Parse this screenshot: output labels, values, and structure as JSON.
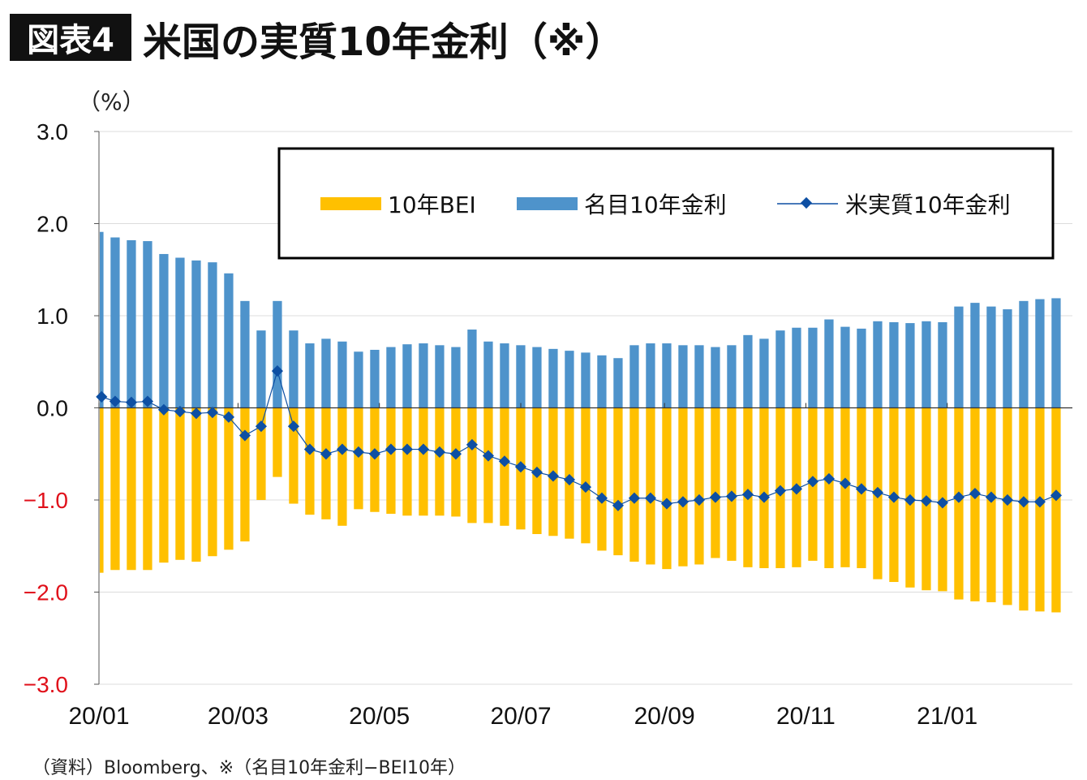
{
  "header": {
    "badge": "図表4",
    "title": "米国の実質10年金利（※）"
  },
  "footer": {
    "source": "（資料）Bloomberg、※（名目10年金利−BEI10年）"
  },
  "chart_data": {
    "type": "bar+line",
    "ylabel": "（%）",
    "ylim": [
      -3.0,
      3.0
    ],
    "yticks": [
      {
        "value": 3.0,
        "label": "3.0",
        "color": "#111111"
      },
      {
        "value": 2.0,
        "label": "2.0",
        "color": "#111111"
      },
      {
        "value": 1.0,
        "label": "1.0",
        "color": "#111111"
      },
      {
        "value": 0.0,
        "label": "0.0",
        "color": "#111111"
      },
      {
        "value": -1.0,
        "label": "−1.0",
        "color": "#E0101A"
      },
      {
        "value": -2.0,
        "label": "−2.0",
        "color": "#E0101A"
      },
      {
        "value": -3.0,
        "label": "−3.0",
        "color": "#E0101A"
      }
    ],
    "xticks": [
      {
        "date": "2020-01-01",
        "label": "20/01"
      },
      {
        "date": "2020-03-01",
        "label": "20/03"
      },
      {
        "date": "2020-05-01",
        "label": "20/05"
      },
      {
        "date": "2020-07-01",
        "label": "20/07"
      },
      {
        "date": "2020-09-01",
        "label": "20/09"
      },
      {
        "date": "2020-11-01",
        "label": "20/11"
      },
      {
        "date": "2021-01-01",
        "label": "21/01"
      }
    ],
    "xlim": [
      "2020-01-01",
      "2021-02-24"
    ],
    "grid": "horizontal",
    "legend": {
      "placement": "top",
      "entries": [
        "10年BEI",
        "名目10年金利",
        "米実質10年金利"
      ]
    },
    "colors": {
      "bei": "#FFC000",
      "nominal": "#4E93CB",
      "real": "#0D4FA3"
    },
    "stacking_note_shown": false,
    "week_ending": [
      "2020-01-03",
      "2020-01-10",
      "2020-01-17",
      "2020-01-24",
      "2020-01-31",
      "2020-02-07",
      "2020-02-14",
      "2020-02-21",
      "2020-02-28",
      "2020-03-06",
      "2020-03-13",
      "2020-03-20",
      "2020-03-27",
      "2020-04-03",
      "2020-04-10",
      "2020-04-17",
      "2020-04-24",
      "2020-05-01",
      "2020-05-08",
      "2020-05-15",
      "2020-05-22",
      "2020-05-29",
      "2020-06-05",
      "2020-06-12",
      "2020-06-19",
      "2020-06-26",
      "2020-07-03",
      "2020-07-10",
      "2020-07-17",
      "2020-07-24",
      "2020-07-31",
      "2020-08-07",
      "2020-08-14",
      "2020-08-21",
      "2020-08-28",
      "2020-09-04",
      "2020-09-11",
      "2020-09-18",
      "2020-09-25",
      "2020-10-02",
      "2020-10-09",
      "2020-10-16",
      "2020-10-23",
      "2020-10-30",
      "2020-11-06",
      "2020-11-13",
      "2020-11-20",
      "2020-11-27",
      "2020-12-04",
      "2020-12-11",
      "2020-12-18",
      "2020-12-25",
      "2021-01-01",
      "2021-01-08",
      "2021-01-15",
      "2021-01-22",
      "2021-01-29",
      "2021-02-05",
      "2021-02-12",
      "2021-02-19"
    ],
    "series": [
      {
        "name": "名目10年金利",
        "kind": "bar",
        "values": [
          1.91,
          1.85,
          1.82,
          1.81,
          1.67,
          1.63,
          1.6,
          1.58,
          1.46,
          1.16,
          0.84,
          1.16,
          0.84,
          0.7,
          0.75,
          0.72,
          0.61,
          0.63,
          0.66,
          0.69,
          0.7,
          0.68,
          0.66,
          0.85,
          0.72,
          0.7,
          0.68,
          0.66,
          0.64,
          0.62,
          0.6,
          0.57,
          0.54,
          0.68,
          0.7,
          0.7,
          0.68,
          0.68,
          0.66,
          0.68,
          0.79,
          0.75,
          0.84,
          0.87,
          0.87,
          0.96,
          0.88,
          0.86,
          0.94,
          0.93,
          0.92,
          0.94,
          0.93,
          1.1,
          1.14,
          1.1,
          1.07,
          1.16,
          1.18,
          1.19
        ]
      },
      {
        "name": "10年BEI",
        "kind": "bar",
        "values": [
          -1.79,
          -1.76,
          -1.76,
          -1.76,
          -1.68,
          -1.65,
          -1.67,
          -1.61,
          -1.54,
          -1.45,
          -1.0,
          -0.75,
          -1.04,
          -1.16,
          -1.21,
          -1.28,
          -1.1,
          -1.13,
          -1.15,
          -1.17,
          -1.17,
          -1.17,
          -1.18,
          -1.25,
          -1.25,
          -1.28,
          -1.32,
          -1.37,
          -1.39,
          -1.42,
          -1.47,
          -1.55,
          -1.6,
          -1.67,
          -1.7,
          -1.75,
          -1.72,
          -1.7,
          -1.63,
          -1.66,
          -1.73,
          -1.74,
          -1.74,
          -1.73,
          -1.66,
          -1.74,
          -1.73,
          -1.74,
          -1.86,
          -1.89,
          -1.95,
          -1.98,
          -1.99,
          -2.08,
          -2.1,
          -2.11,
          -2.14,
          -2.2,
          -2.21,
          -2.22
        ]
      },
      {
        "name": "米実質10年金利",
        "kind": "line-marker",
        "values": [
          0.12,
          0.07,
          0.06,
          0.07,
          -0.02,
          -0.04,
          -0.06,
          -0.05,
          -0.1,
          -0.3,
          -0.2,
          0.4,
          -0.2,
          -0.45,
          -0.5,
          -0.45,
          -0.48,
          -0.5,
          -0.45,
          -0.45,
          -0.45,
          -0.48,
          -0.5,
          -0.4,
          -0.52,
          -0.58,
          -0.64,
          -0.7,
          -0.74,
          -0.78,
          -0.86,
          -0.98,
          -1.06,
          -0.98,
          -0.98,
          -1.04,
          -1.02,
          -1.0,
          -0.97,
          -0.96,
          -0.94,
          -0.97,
          -0.9,
          -0.88,
          -0.8,
          -0.77,
          -0.82,
          -0.88,
          -0.92,
          -0.97,
          -1.0,
          -1.01,
          -1.03,
          -0.97,
          -0.93,
          -0.97,
          -1.0,
          -1.02,
          -1.02,
          -0.95
        ]
      }
    ]
  }
}
